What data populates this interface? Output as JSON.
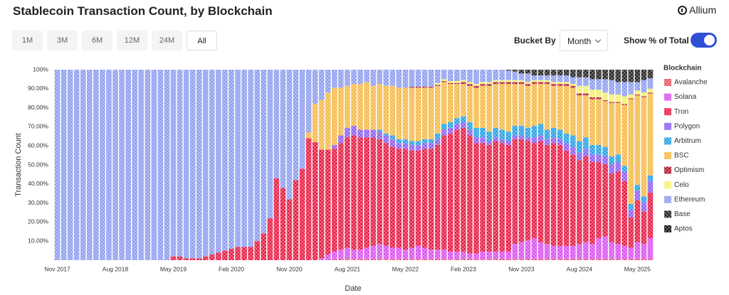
{
  "header": {
    "title": "Stablecoin Transaction Count, by Blockchain",
    "logo": "Allium",
    "range_buttons": [
      "1M",
      "3M",
      "6M",
      "12M",
      "24M",
      "All"
    ],
    "bucket_label": "Bucket By",
    "bucket_value": "Month",
    "toggle_label": "Show % of Total",
    "toggle_on": true
  },
  "chart_data": {
    "type": "bar",
    "stacked": true,
    "grid": false,
    "ylabel": "Transaction Count",
    "xlabel": "Date",
    "legend_title": "Blockchain",
    "ylim": [
      0,
      100
    ],
    "yticks": [
      {
        "value": 10,
        "label": "10.00%"
      },
      {
        "value": 20,
        "label": "20.00%"
      },
      {
        "value": 30,
        "label": "30.00%"
      },
      {
        "value": 40,
        "label": "40.00%"
      },
      {
        "value": 50,
        "label": "50.00%"
      },
      {
        "value": 60,
        "label": "60.00%"
      },
      {
        "value": 70,
        "label": "70.00%"
      },
      {
        "value": 80,
        "label": "80.00%"
      },
      {
        "value": 90,
        "label": "90.00%"
      },
      {
        "value": 100,
        "label": "100%"
      }
    ],
    "categories": [
      "Nov 2017",
      null,
      null,
      null,
      null,
      null,
      null,
      null,
      null,
      "Aug 2018",
      null,
      null,
      null,
      null,
      null,
      null,
      null,
      null,
      "May 2019",
      null,
      null,
      null,
      null,
      null,
      null,
      null,
      null,
      "Feb 2020",
      null,
      null,
      null,
      null,
      null,
      null,
      null,
      null,
      "Nov 2020",
      null,
      null,
      null,
      null,
      null,
      null,
      null,
      null,
      "Aug 2021",
      null,
      null,
      null,
      null,
      null,
      null,
      null,
      null,
      "May 2022",
      null,
      null,
      null,
      null,
      null,
      null,
      null,
      null,
      "Feb 2023",
      null,
      null,
      null,
      null,
      null,
      null,
      null,
      null,
      "Nov 2023",
      null,
      null,
      null,
      null,
      null,
      null,
      null,
      null,
      "Aug 2024",
      null,
      null,
      null,
      null,
      null,
      null,
      null,
      null,
      "May 2025",
      null,
      null
    ],
    "series": [
      {
        "name": "Avalanche",
        "color": "#e8505b",
        "values": [
          0,
          0,
          0,
          0,
          0,
          0,
          0,
          0,
          0,
          0,
          0,
          0,
          0,
          0,
          0,
          0,
          0,
          0,
          0,
          0,
          0,
          0,
          0,
          0,
          0,
          0,
          0,
          0,
          0,
          0,
          0,
          0,
          0,
          0,
          0,
          0,
          0,
          0,
          0,
          0,
          0,
          0,
          0,
          0.5,
          0.5,
          0.5,
          0.5,
          0.5,
          0.5,
          0.5,
          0.5,
          0.5,
          0.5,
          0.5,
          0.5,
          0.5,
          0.5,
          0.5,
          0.5,
          0.5,
          0.5,
          0.5,
          0.5,
          0.5,
          0.5,
          0.5,
          0.5,
          0.5,
          0.5,
          0.5,
          0.5,
          0.5,
          0.5,
          0.5,
          0.5,
          0.5,
          0.5,
          0.5,
          0.5,
          0.5,
          0.5,
          0.5,
          0.5,
          0.5,
          0.5,
          0.5,
          0.5,
          0.5,
          0.5,
          0.5,
          0.5,
          0.5,
          0.5
        ]
      },
      {
        "name": "Solana",
        "color": "#d94cf0",
        "values": [
          0,
          0,
          0,
          0,
          0,
          0,
          0,
          0,
          0,
          0,
          0,
          0,
          0,
          0,
          0,
          0,
          0,
          0,
          0,
          0,
          0,
          0,
          0,
          0,
          0,
          0,
          0,
          0,
          0,
          0,
          0,
          0,
          0,
          0,
          0,
          0,
          0,
          0,
          0,
          0,
          0,
          1,
          3,
          4,
          5,
          6,
          5,
          5,
          6,
          7,
          8,
          7,
          6,
          6,
          5,
          6,
          7,
          6,
          5,
          5,
          5,
          4,
          4,
          4,
          3,
          3,
          4,
          4,
          4,
          4,
          4,
          8,
          9,
          10,
          11,
          9,
          8,
          7,
          7,
          7,
          7,
          8,
          9,
          8,
          11,
          12,
          9,
          8,
          7,
          6,
          9,
          8,
          11
        ]
      },
      {
        "name": "Tron",
        "color": "#e5173f",
        "values": [
          0,
          0,
          0,
          0,
          0,
          0,
          0,
          0,
          0,
          0,
          0,
          0,
          0,
          0,
          0,
          0,
          0,
          0,
          2,
          2,
          1,
          1,
          1,
          2,
          3,
          4,
          5,
          6,
          7,
          7,
          7,
          10,
          14,
          22,
          43,
          38,
          32,
          42,
          48,
          64,
          62,
          57,
          55,
          54,
          56,
          58,
          60,
          59,
          58,
          57,
          55,
          54,
          53,
          52,
          53,
          51,
          50,
          52,
          53,
          55,
          60,
          62,
          64,
          65,
          62,
          58,
          57,
          56,
          58,
          57,
          56,
          55,
          54,
          52,
          50,
          53,
          52,
          54,
          53,
          50,
          48,
          44,
          45,
          43,
          40,
          38,
          36,
          38,
          34,
          16,
          22,
          17,
          24
        ]
      },
      {
        "name": "Polygon",
        "color": "#8a5cf0",
        "values": [
          0,
          0,
          0,
          0,
          0,
          0,
          0,
          0,
          0,
          0,
          0,
          0,
          0,
          0,
          0,
          0,
          0,
          0,
          0,
          0,
          0,
          0,
          0,
          0,
          0,
          0,
          0,
          0,
          0,
          0,
          0,
          0,
          0,
          0,
          0,
          0,
          0,
          0,
          0,
          0,
          0,
          0,
          0,
          2,
          4,
          5,
          5,
          4,
          4,
          4,
          4,
          4,
          4,
          3,
          3,
          3,
          3,
          3,
          3,
          3,
          3,
          3,
          3,
          3,
          3,
          3,
          3,
          2,
          2,
          2,
          2,
          2,
          2,
          2,
          3,
          3,
          3,
          3,
          3,
          4,
          4,
          4,
          4,
          4,
          4,
          4,
          5,
          5,
          5,
          4,
          5,
          5,
          6
        ]
      },
      {
        "name": "Arbitrum",
        "color": "#1e9fe3",
        "values": [
          0,
          0,
          0,
          0,
          0,
          0,
          0,
          0,
          0,
          0,
          0,
          0,
          0,
          0,
          0,
          0,
          0,
          0,
          0,
          0,
          0,
          0,
          0,
          0,
          0,
          0,
          0,
          0,
          0,
          0,
          0,
          0,
          0,
          0,
          0,
          0,
          0,
          0,
          0,
          0,
          0,
          0,
          0,
          0,
          0,
          0,
          0,
          0,
          0,
          0,
          1,
          1,
          2,
          2,
          2,
          2,
          2,
          2,
          2,
          3,
          3,
          3,
          3,
          3,
          4,
          5,
          5,
          5,
          5,
          5,
          5,
          5,
          5,
          5,
          6,
          6,
          5,
          5,
          5,
          5,
          6,
          6,
          6,
          5,
          5,
          5,
          4,
          4,
          3,
          3,
          3,
          3,
          3
        ]
      },
      {
        "name": "BSC",
        "color": "#f5b841",
        "values": [
          0,
          0,
          0,
          0,
          0,
          0,
          0,
          0,
          0,
          0,
          0,
          0,
          0,
          0,
          0,
          0,
          0,
          0,
          0,
          0,
          0,
          0,
          0,
          0,
          0,
          0,
          0,
          0,
          0,
          0,
          0,
          0,
          0,
          0,
          0,
          0,
          0,
          0,
          0,
          3,
          20,
          26,
          30,
          30,
          25,
          22,
          22,
          24,
          25,
          23,
          24,
          25,
          26,
          27,
          27,
          28,
          28,
          27,
          27,
          25,
          22,
          20,
          18,
          17,
          19,
          21,
          22,
          24,
          23,
          24,
          25,
          22,
          22,
          22,
          22,
          21,
          24,
          22,
          23,
          25,
          25,
          24,
          22,
          24,
          24,
          24,
          28,
          27,
          32,
          55,
          47,
          52,
          43
        ]
      },
      {
        "name": "Optimism",
        "color": "#b3132e",
        "values": [
          0,
          0,
          0,
          0,
          0,
          0,
          0,
          0,
          0,
          0,
          0,
          0,
          0,
          0,
          0,
          0,
          0,
          0,
          0,
          0,
          0,
          0,
          0,
          0,
          0,
          0,
          0,
          0,
          0,
          0,
          0,
          0,
          0,
          0,
          0,
          0,
          0,
          0,
          0,
          0,
          0,
          0,
          0,
          0,
          0,
          0,
          0,
          0,
          0,
          0,
          0,
          0,
          0,
          0,
          0,
          0.5,
          0.5,
          0.5,
          0.5,
          0.5,
          0.5,
          0.5,
          0.5,
          1,
          1,
          1,
          1,
          1,
          1,
          1,
          1,
          1,
          1,
          1,
          1,
          1,
          1,
          1,
          1,
          1,
          1,
          1,
          1,
          1,
          1,
          0.5,
          0.5,
          0.5,
          0.5,
          0.5,
          0.5,
          0.5,
          0.5
        ]
      },
      {
        "name": "Celo",
        "color": "#f4f06a",
        "values": [
          0,
          0,
          0,
          0,
          0,
          0,
          0,
          0,
          0,
          0,
          0,
          0,
          0,
          0,
          0,
          0,
          0,
          0,
          0,
          0,
          0,
          0,
          0,
          0,
          0,
          0,
          0,
          0,
          0,
          0,
          0,
          0,
          0,
          0,
          0,
          0,
          0,
          0,
          0,
          0,
          0,
          0,
          0,
          0,
          0,
          0,
          0,
          0,
          0,
          0,
          0,
          0,
          0,
          0,
          0,
          0,
          0,
          0,
          0,
          1,
          1,
          1,
          1,
          1,
          1,
          1,
          1,
          1,
          1,
          1,
          1,
          1,
          1,
          1,
          1,
          1,
          1,
          1,
          1,
          1,
          1,
          4,
          4,
          4,
          4,
          4,
          4,
          4,
          4,
          2,
          2,
          2,
          2
        ]
      },
      {
        "name": "Ethereum",
        "color": "#8b9bef",
        "values": [
          100,
          100,
          100,
          100,
          100,
          100,
          100,
          100,
          100,
          100,
          100,
          100,
          100,
          100,
          100,
          100,
          100,
          100,
          98,
          98,
          99,
          99,
          99,
          98,
          97,
          96,
          95,
          94,
          93,
          93,
          93,
          90,
          86,
          78,
          57,
          62,
          68,
          58,
          52,
          33,
          18,
          16,
          12,
          9.5,
          9.5,
          8.5,
          7.5,
          7.5,
          6.5,
          8.5,
          7.5,
          8.5,
          8.5,
          9.5,
          9.5,
          9,
          9,
          9,
          9,
          7,
          5,
          6,
          6,
          5.5,
          6.5,
          7.5,
          6.5,
          6.5,
          5.5,
          5.5,
          5,
          4.5,
          3.5,
          4.5,
          2.5,
          2.5,
          2.5,
          3.5,
          3.5,
          3.5,
          3.5,
          4.5,
          4.5,
          5.5,
          5.5,
          7,
          7.5,
          6.5,
          7.5,
          6.5,
          4.5,
          6.5,
          5.5
        ]
      },
      {
        "name": "Base",
        "color": "#1f1f1f",
        "values": [
          0,
          0,
          0,
          0,
          0,
          0,
          0,
          0,
          0,
          0,
          0,
          0,
          0,
          0,
          0,
          0,
          0,
          0,
          0,
          0,
          0,
          0,
          0,
          0,
          0,
          0,
          0,
          0,
          0,
          0,
          0,
          0,
          0,
          0,
          0,
          0,
          0,
          0,
          0,
          0,
          0,
          0,
          0,
          0,
          0,
          0,
          0,
          0,
          0,
          0,
          0,
          0,
          0,
          0,
          0,
          0,
          0,
          0,
          0,
          0,
          0,
          0,
          0,
          0,
          0,
          0,
          0,
          0,
          0,
          0,
          0.5,
          1,
          2,
          2,
          3,
          3,
          3,
          3,
          3,
          3,
          4,
          4,
          4,
          5,
          5,
          5,
          5,
          6,
          6,
          6,
          6,
          5,
          4
        ]
      },
      {
        "name": "Aptos",
        "color": "#0d0d0d",
        "values": [
          0,
          0,
          0,
          0,
          0,
          0,
          0,
          0,
          0,
          0,
          0,
          0,
          0,
          0,
          0,
          0,
          0,
          0,
          0,
          0,
          0,
          0,
          0,
          0,
          0,
          0,
          0,
          0,
          0,
          0,
          0,
          0,
          0,
          0,
          0,
          0,
          0,
          0,
          0,
          0,
          0,
          0,
          0,
          0,
          0,
          0,
          0,
          0,
          0,
          0,
          0,
          0,
          0,
          0,
          0,
          0,
          0,
          0,
          0,
          0,
          0,
          0,
          0,
          0,
          0,
          0,
          0,
          0,
          0,
          0,
          0,
          0,
          0,
          0,
          0,
          0,
          0,
          0,
          0,
          0,
          0,
          0,
          0,
          0,
          0,
          0,
          0.5,
          0.5,
          0.5,
          0.5,
          0.5,
          0.5,
          0.5
        ]
      }
    ]
  }
}
